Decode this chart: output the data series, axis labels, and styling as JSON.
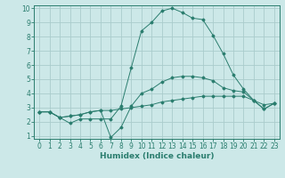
{
  "x_values": [
    0,
    1,
    2,
    3,
    4,
    5,
    6,
    7,
    8,
    9,
    10,
    11,
    12,
    13,
    14,
    15,
    16,
    17,
    18,
    19,
    20,
    21,
    22,
    23
  ],
  "line1_y": [
    2.7,
    2.7,
    2.3,
    1.9,
    2.2,
    2.2,
    2.2,
    2.2,
    3.1,
    5.8,
    8.4,
    9.0,
    9.8,
    10.0,
    9.7,
    9.3,
    9.2,
    8.1,
    6.8,
    5.3,
    4.3,
    3.5,
    2.9,
    3.3
  ],
  "line2_y": [
    2.7,
    2.7,
    2.3,
    2.4,
    2.5,
    2.7,
    2.8,
    0.9,
    1.6,
    3.1,
    4.0,
    4.3,
    4.8,
    5.1,
    5.2,
    5.2,
    5.1,
    4.9,
    4.4,
    4.2,
    4.1,
    3.5,
    2.9,
    3.3
  ],
  "line3_y": [
    2.7,
    2.7,
    2.3,
    2.4,
    2.5,
    2.7,
    2.8,
    2.8,
    2.9,
    3.0,
    3.1,
    3.2,
    3.4,
    3.5,
    3.6,
    3.7,
    3.8,
    3.8,
    3.8,
    3.8,
    3.8,
    3.5,
    3.2,
    3.3
  ],
  "line_color": "#2a7d6e",
  "bg_color": "#cce8e8",
  "grid_color": "#aacccc",
  "xlabel": "Humidex (Indice chaleur)",
  "xlim": [
    -0.5,
    23.5
  ],
  "ylim": [
    0.8,
    10.2
  ],
  "yticks": [
    1,
    2,
    3,
    4,
    5,
    6,
    7,
    8,
    9,
    10
  ],
  "xticks": [
    0,
    1,
    2,
    3,
    4,
    5,
    6,
    7,
    8,
    9,
    10,
    11,
    12,
    13,
    14,
    15,
    16,
    17,
    18,
    19,
    20,
    21,
    22,
    23
  ]
}
